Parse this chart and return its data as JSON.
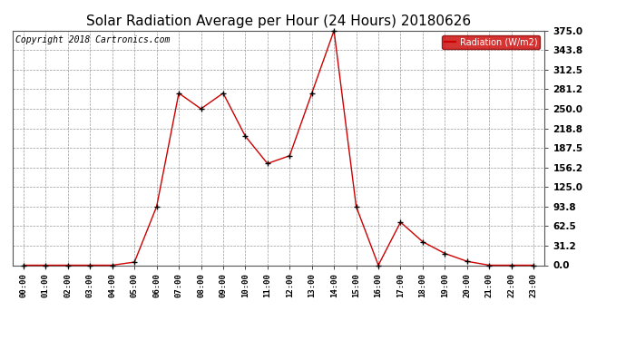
{
  "title": "Solar Radiation Average per Hour (24 Hours) 20180626",
  "copyright_text": "Copyright 2018 Cartronics.com",
  "legend_label": "Radiation (W/m2)",
  "hours": [
    "00:00",
    "01:00",
    "02:00",
    "03:00",
    "04:00",
    "05:00",
    "06:00",
    "07:00",
    "08:00",
    "09:00",
    "10:00",
    "11:00",
    "12:00",
    "13:00",
    "14:00",
    "15:00",
    "16:00",
    "17:00",
    "18:00",
    "19:00",
    "20:00",
    "21:00",
    "22:00",
    "23:00"
  ],
  "values": [
    0.0,
    0.0,
    0.0,
    0.0,
    0.0,
    5.0,
    93.8,
    275.0,
    250.0,
    275.0,
    206.2,
    162.5,
    175.0,
    275.0,
    375.0,
    93.8,
    0.0,
    68.8,
    37.5,
    18.8,
    6.2,
    0.0,
    0.0,
    0.0
  ],
  "line_color": "#cc0000",
  "marker_color": "#000000",
  "background_color": "#ffffff",
  "grid_color": "#999999",
  "ylim": [
    0.0,
    375.0
  ],
  "yticks": [
    0.0,
    31.2,
    62.5,
    93.8,
    125.0,
    156.2,
    187.5,
    218.8,
    250.0,
    281.2,
    312.5,
    343.8,
    375.0
  ],
  "title_fontsize": 11,
  "copyright_fontsize": 7,
  "legend_bg": "#cc0000",
  "legend_text_color": "#ffffff",
  "fig_width": 6.9,
  "fig_height": 3.75,
  "dpi": 100
}
